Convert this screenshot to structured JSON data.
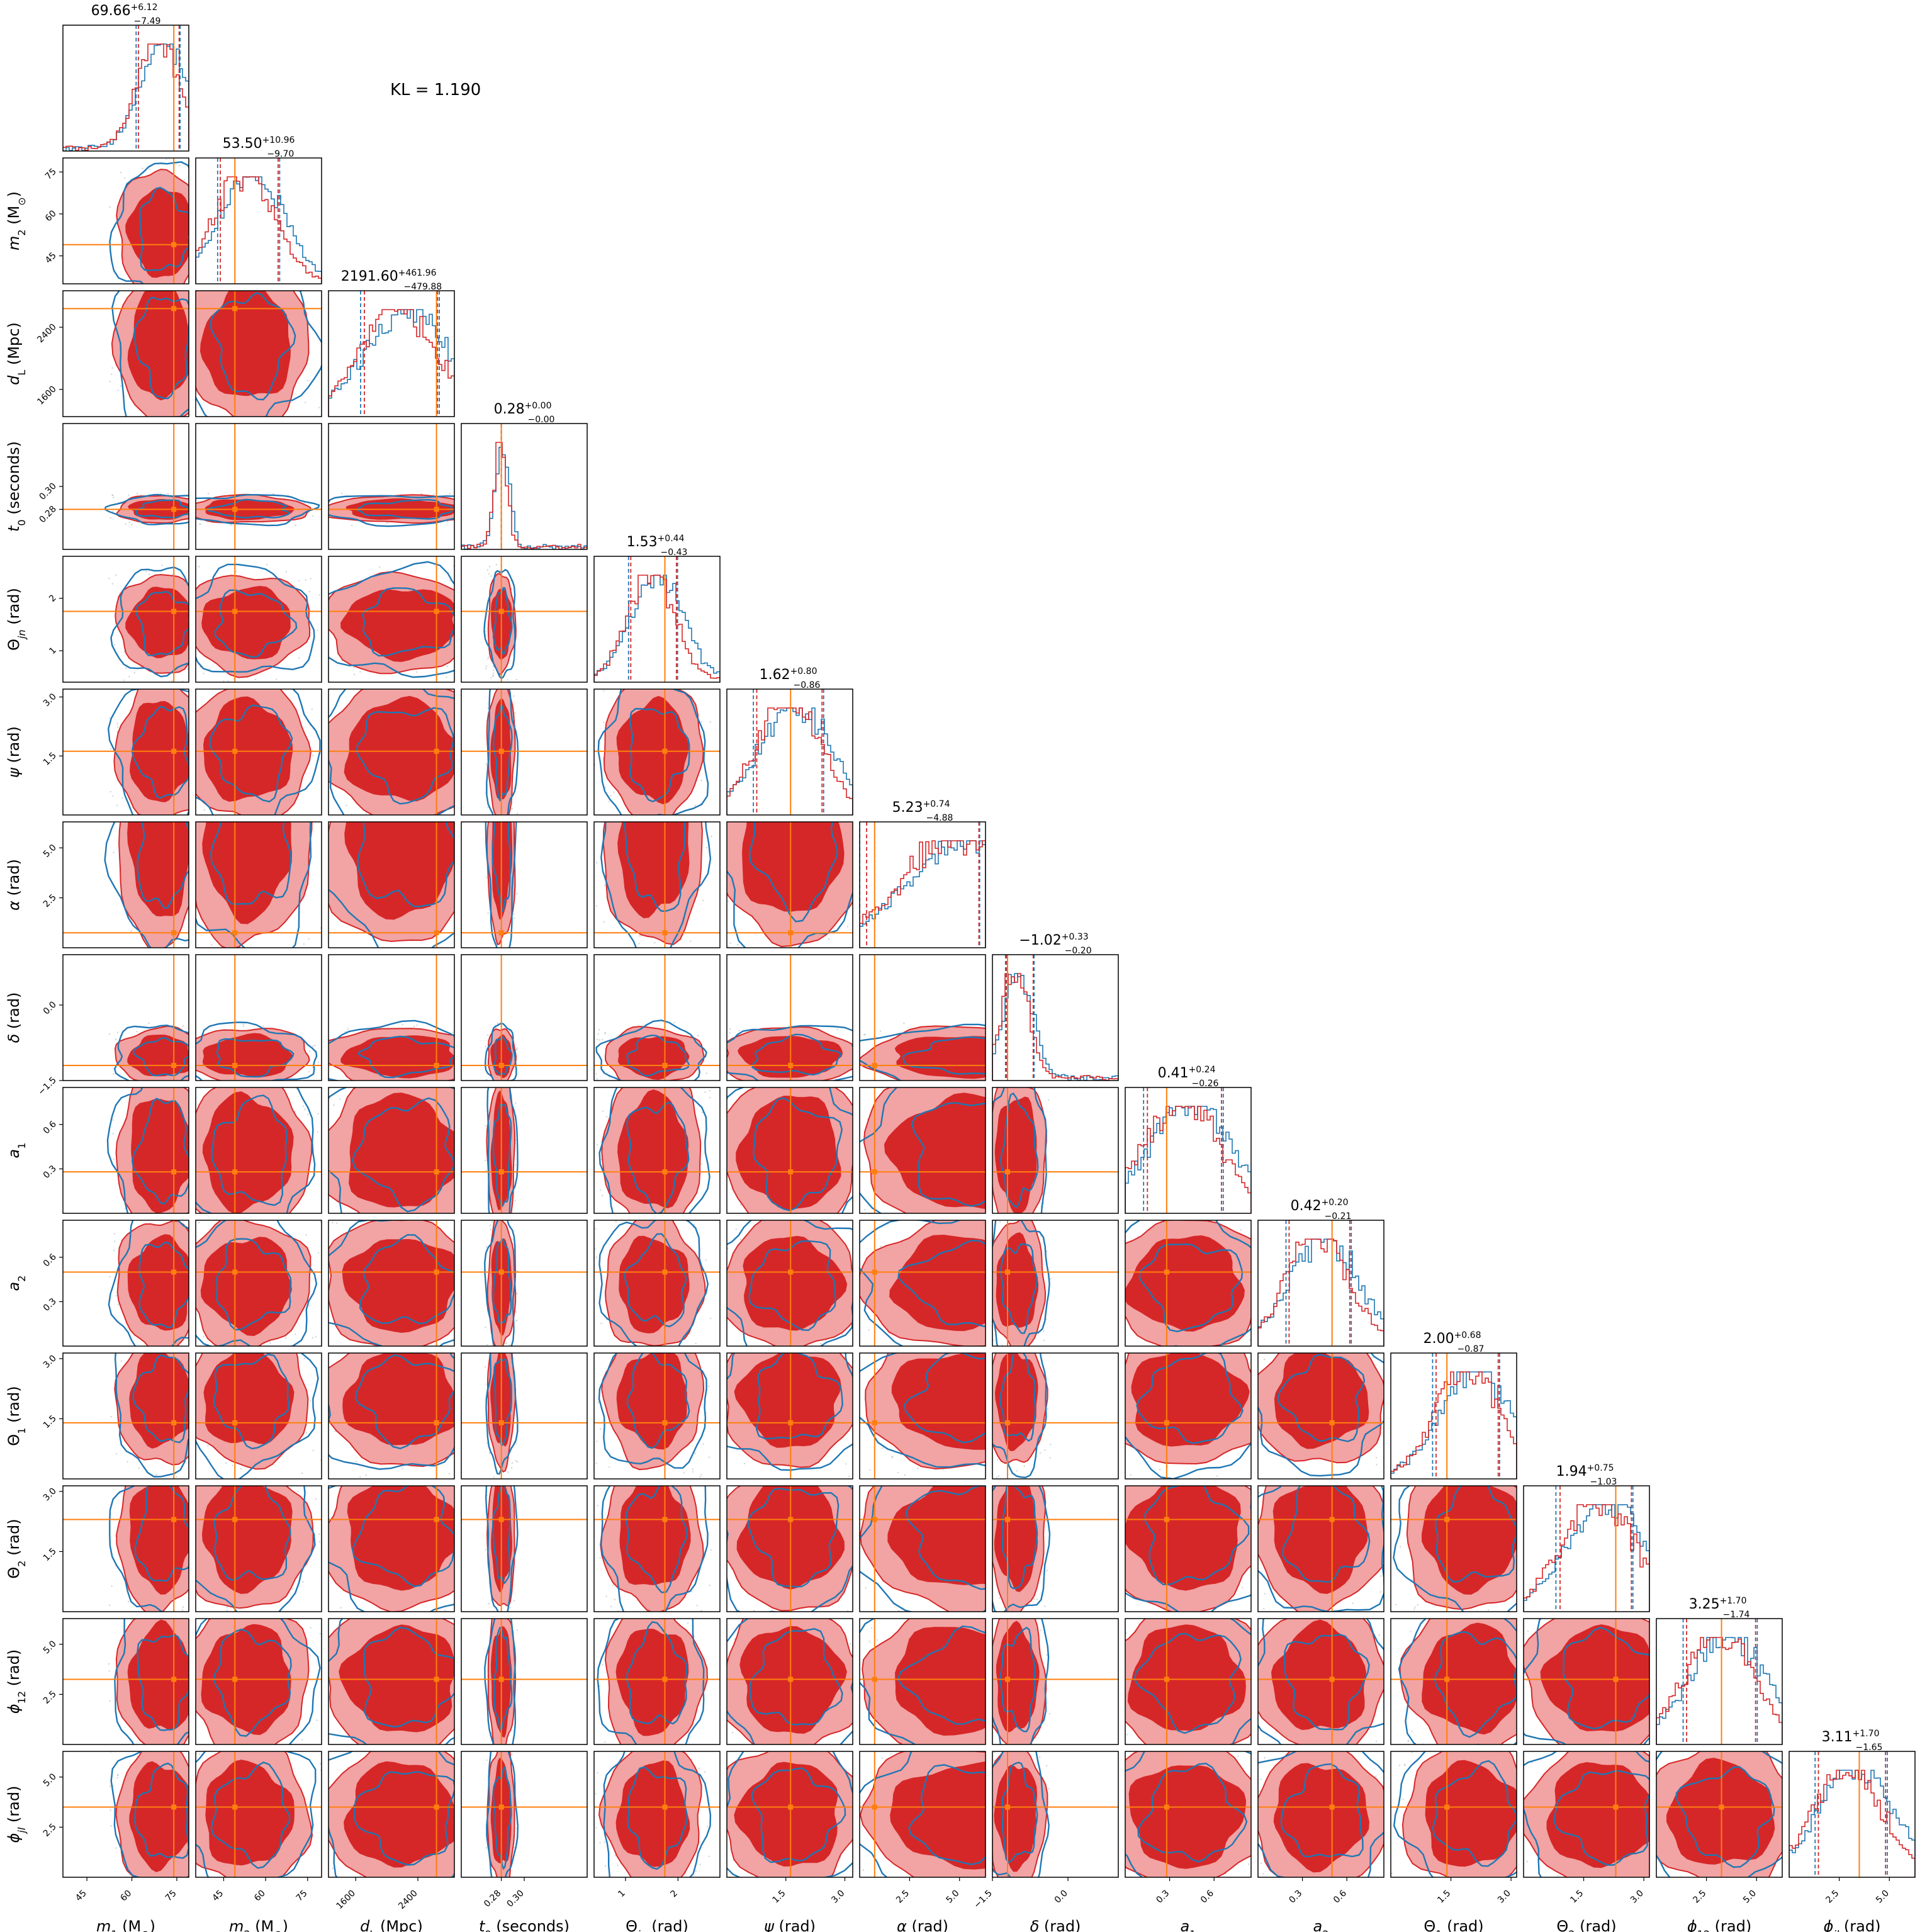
{
  "figure": {
    "annotation": "KL = 1.190"
  },
  "chart_data": {
    "type": "corner",
    "parameters": [
      {
        "key": "m1",
        "label_html": "<i>m</i><sub>1</sub>&thinsp;(M<sub>⊙</sub>)",
        "range": [
          37,
          79
        ],
        "ticks": [
          45,
          60,
          75
        ],
        "tick_labels": [
          "45",
          "60",
          "75"
        ],
        "median": 69.66,
        "plus": 6.12,
        "minus": 7.49,
        "truth": 74.0
      },
      {
        "key": "m2",
        "label_html": "<i>m</i><sub>2</sub>&thinsp;(M<sub>⊙</sub>)",
        "range": [
          35,
          80
        ],
        "ticks": [
          45,
          60,
          75
        ],
        "tick_labels": [
          "45",
          "60",
          "75"
        ],
        "median": 53.5,
        "plus": 10.96,
        "minus": 9.7,
        "truth": 49.0
      },
      {
        "key": "dL",
        "label_html": "<i>d</i><sub>L</sub>&thinsp;(Mpc)",
        "range": [
          1250,
          2870
        ],
        "ticks": [
          1600,
          2400
        ],
        "tick_labels": [
          "1600",
          "2400"
        ],
        "median": 2191.6,
        "plus": 461.96,
        "minus": 479.88,
        "truth": 2640
      },
      {
        "key": "t0",
        "label_html": "<i>t</i><sub>0</sub>&thinsp;(seconds)",
        "range": [
          0.245,
          0.355
        ],
        "ticks": [
          0.28,
          0.3
        ],
        "tick_labels": [
          "0.28",
          "0.30"
        ],
        "median": 0.28,
        "plus": 0.0,
        "minus": 0.0,
        "truth": 0.28
      },
      {
        "key": "thetajn",
        "label_html": "Θ<sub><i>jn</i></sub>&thinsp;(rad)",
        "range": [
          0.4,
          2.8
        ],
        "ticks": [
          1,
          2
        ],
        "tick_labels": [
          "1",
          "2"
        ],
        "median": 1.53,
        "plus": 0.44,
        "minus": 0.43,
        "truth": 1.75
      },
      {
        "key": "psi",
        "label_html": "<i>ψ</i>&thinsp;(rad)",
        "range": [
          0.0,
          3.2
        ],
        "ticks": [
          1.5,
          3.0
        ],
        "tick_labels": [
          "1.5",
          "3.0"
        ],
        "median": 1.62,
        "plus": 0.8,
        "minus": 0.86,
        "truth": 1.62
      },
      {
        "key": "alpha",
        "label_html": "<i>α</i>&thinsp;(rad)",
        "range": [
          0.0,
          6.3
        ],
        "ticks": [
          2.5,
          5.0
        ],
        "tick_labels": [
          "2.5",
          "5.0"
        ],
        "median": 5.23,
        "plus": 0.74,
        "minus": 4.88,
        "truth": 0.75
      },
      {
        "key": "delta",
        "label_html": "<i>δ</i>&thinsp;(rad)",
        "range": [
          -1.5,
          1.0
        ],
        "ticks": [
          -1.5,
          0.0
        ],
        "tick_labels": [
          "−1.5",
          "0.0"
        ],
        "median": -1.02,
        "plus": 0.33,
        "minus": 0.2,
        "truth": -1.2
      },
      {
        "key": "a1",
        "label_html": "<i>a</i><sub>1</sub>",
        "range": [
          0.0,
          0.85
        ],
        "ticks": [
          0.3,
          0.6
        ],
        "tick_labels": [
          "0.3",
          "0.6"
        ],
        "median": 0.41,
        "plus": 0.24,
        "minus": 0.26,
        "truth": 0.28
      },
      {
        "key": "a2",
        "label_html": "<i>a</i><sub>2</sub>",
        "range": [
          0.0,
          0.85
        ],
        "ticks": [
          0.3,
          0.6
        ],
        "tick_labels": [
          "0.3",
          "0.6"
        ],
        "median": 0.42,
        "plus": 0.2,
        "minus": 0.21,
        "truth": 0.5
      },
      {
        "key": "theta1",
        "label_html": "Θ<sub>1</sub>&thinsp;(rad)",
        "range": [
          0.0,
          3.14
        ],
        "ticks": [
          1.5,
          3.0
        ],
        "tick_labels": [
          "1.5",
          "3.0"
        ],
        "median": 2.0,
        "plus": 0.68,
        "minus": 0.87,
        "truth": 1.4
      },
      {
        "key": "theta2",
        "label_html": "Θ<sub>2</sub>&thinsp;(rad)",
        "range": [
          0.0,
          3.14
        ],
        "ticks": [
          1.5,
          3.0
        ],
        "tick_labels": [
          "1.5",
          "3.0"
        ],
        "median": 1.94,
        "plus": 0.75,
        "minus": 1.03,
        "truth": 2.3
      },
      {
        "key": "phi12",
        "label_html": "<i>ϕ</i><sub>12</sub>&thinsp;(rad)",
        "range": [
          0.0,
          6.28
        ],
        "ticks": [
          2.5,
          5.0
        ],
        "tick_labels": [
          "2.5",
          "5.0"
        ],
        "median": 3.25,
        "plus": 1.7,
        "minus": 1.74,
        "truth": 3.25
      },
      {
        "key": "phijl",
        "label_html": "<i>ϕ</i><sub><i>jl</i></sub>&thinsp;(rad)",
        "range": [
          0.0,
          6.28
        ],
        "ticks": [
          2.5,
          5.0
        ],
        "tick_labels": [
          "2.5",
          "5.0"
        ],
        "median": 3.11,
        "plus": 1.7,
        "minus": 1.65,
        "truth": 3.5
      }
    ],
    "series": [
      {
        "role": "posterior-filled",
        "color": "#d62728",
        "fill_light": "#f2a3a3"
      },
      {
        "role": "posterior-outline",
        "color": "#1f77b4"
      },
      {
        "role": "truth",
        "color": "#ff7f0e"
      }
    ],
    "title_labels": [
      "69.66<tspan baseline-shift='super' font-size='14'>+6.12</tspan><tspan font-size='14' dx='-38' dy='14'>−7.49</tspan>",
      "53.50<tspan baseline-shift='super' font-size='14'>+10.96</tspan><tspan font-size='14' dx='-44' dy='14'>−9.70</tspan>",
      "2191.60<tspan baseline-shift='super' font-size='14'>+461.96</tspan><tspan font-size='14' dx='-52' dy='14'>−479.88</tspan>",
      "0.28<tspan baseline-shift='super' font-size='14'>+0.00</tspan><tspan font-size='14' dx='-38' dy='14'>−0.00</tspan>",
      "1.53<tspan baseline-shift='super' font-size='14'>+0.44</tspan><tspan font-size='14' dx='-38' dy='14'>−0.43</tspan>",
      "1.62<tspan baseline-shift='super' font-size='14'>+0.80</tspan><tspan font-size='14' dx='-38' dy='14'>−0.86</tspan>",
      "5.23<tspan baseline-shift='super' font-size='14'>+0.74</tspan><tspan font-size='14' dx='-38' dy='14'>−4.88</tspan>",
      "−1.02<tspan baseline-shift='super' font-size='14'>+0.33</tspan><tspan font-size='14' dx='-38' dy='14'>−0.20</tspan>",
      "0.41<tspan baseline-shift='super' font-size='14'>+0.24</tspan><tspan font-size='14' dx='-38' dy='14'>−0.26</tspan>",
      "0.42<tspan baseline-shift='super' font-size='14'>+0.20</tspan><tspan font-size='14' dx='-38' dy='14'>−0.21</tspan>",
      "2.00<tspan baseline-shift='super' font-size='14'>+0.68</tspan><tspan font-size='14' dx='-38' dy='14'>−0.87</tspan>",
      "1.94<tspan baseline-shift='super' font-size='14'>+0.75</tspan><tspan font-size='14' dx='-38' dy='14'>−1.03</tspan>",
      "3.25<tspan baseline-shift='super' font-size='14'>+1.70</tspan><tspan font-size='14' dx='-38' dy='14'>−1.74</tspan>",
      "3.11<tspan baseline-shift='super' font-size='14'>+1.70</tspan><tspan font-size='14' dx='-38' dy='14'>−1.65</tspan>"
    ]
  }
}
